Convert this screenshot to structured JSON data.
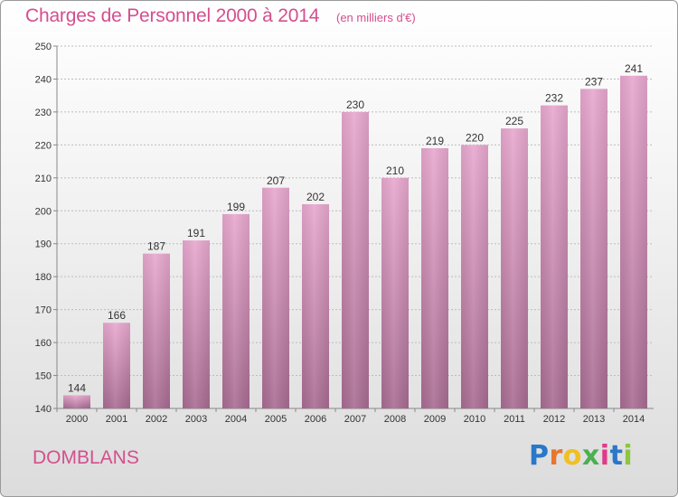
{
  "title": "Charges de Personnel 2000 à 2014",
  "unit_note": "(en milliers d'€)",
  "commune": "DOMBLANS",
  "logo": {
    "letters": [
      "P",
      "r",
      "o",
      "x",
      "i",
      "t",
      "i"
    ],
    "colors": [
      "#2a78c8",
      "#e8762c",
      "#f0c020",
      "#4caf50",
      "#e03a8a",
      "#2a78c8",
      "#8dc63f"
    ]
  },
  "colors": {
    "title": "#d44f8e",
    "bar_top": "#e8a8cf",
    "bar_bottom": "#a86c92"
  },
  "chart_data": {
    "type": "bar",
    "categories": [
      "2000",
      "2001",
      "2002",
      "2003",
      "2004",
      "2005",
      "2006",
      "2007",
      "2008",
      "2009",
      "2010",
      "2011",
      "2012",
      "2013",
      "2014"
    ],
    "values": [
      144,
      166,
      187,
      191,
      199,
      207,
      202,
      230,
      210,
      219,
      220,
      225,
      232,
      237,
      241
    ],
    "ylim": [
      140,
      250
    ],
    "yticks": [
      140,
      150,
      160,
      170,
      180,
      190,
      200,
      210,
      220,
      230,
      240,
      250
    ],
    "grid": true,
    "xlabel": "",
    "ylabel": ""
  }
}
